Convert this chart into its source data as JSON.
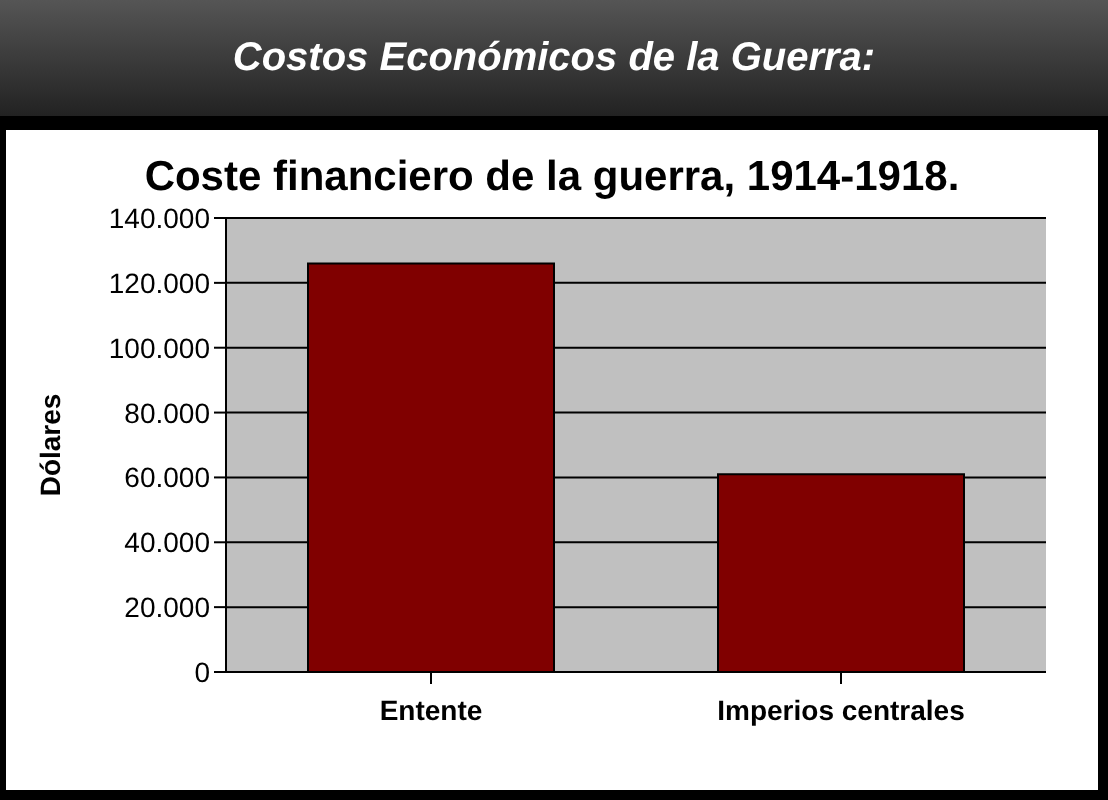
{
  "chart_data": {
    "type": "bar",
    "title": "Costos Económicos de la Guerra:",
    "subtitle": "Coste financiero de la guerra, 1914-1918.",
    "ylabel": "Dólares",
    "categories": [
      "Entente",
      "Imperios centrales"
    ],
    "values": [
      126000,
      61000
    ],
    "color": "#800000",
    "ylim": [
      0,
      140000
    ],
    "yticks": [
      {
        "value": 0,
        "label": "0"
      },
      {
        "value": 20000,
        "label": "20.000"
      },
      {
        "value": 40000,
        "label": "40.000"
      },
      {
        "value": 60000,
        "label": "60.000"
      },
      {
        "value": 80000,
        "label": "80.000"
      },
      {
        "value": 100000,
        "label": "100.000"
      },
      {
        "value": 120000,
        "label": "120.000"
      },
      {
        "value": 140000,
        "label": "140.000"
      }
    ],
    "grid": "y",
    "legend": false
  }
}
